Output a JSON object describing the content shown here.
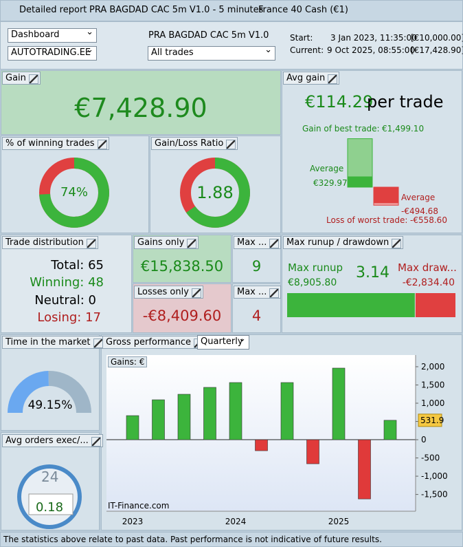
{
  "titlebar": {
    "tabs": [
      "Detailed report",
      "PRA BAGDAD CAC 5m V1.0 - 5 minutes",
      "France 40 Cash (€1)"
    ]
  },
  "toolbar": {
    "view": "Dashboard",
    "broker": "AUTOTRADING.EE",
    "strategy": "PRA BAGDAD CAC 5m V1.0",
    "trades": "All trades",
    "start_label": "Start:",
    "start_date": "3 Jan 2023, 11:35:00",
    "start_capital": "[€10,000.00]",
    "current_label": "Current:",
    "current_date": "9 Oct 2025, 08:55:00",
    "current_capital": "[€17,428.90]"
  },
  "gain": {
    "label": "Gain",
    "value": "€7,428.90"
  },
  "avg_gain": {
    "label": "Avg gain",
    "value": "€114.29",
    "suffix": "per trade",
    "best_prefix": "Gain of best trade:",
    "best": {
      "value": 1499.1,
      "label": "€1,499.10"
    },
    "avg_win_label": "Average",
    "avg_win": {
      "value": 329.97,
      "label": "€329.97"
    },
    "avg_loss_label": "Average",
    "avg_loss": {
      "value": -494.68,
      "label": "-€494.68"
    },
    "worst_prefix": "Loss of worst trade:",
    "worst": {
      "value": -558.6,
      "label": "-€558.60"
    }
  },
  "winning_trades": {
    "label": "% of winning trades",
    "value": 74,
    "value_label": "74%"
  },
  "gain_loss_ratio": {
    "label": "Gain/Loss Ratio",
    "value": 1.88
  },
  "trade_distribution": {
    "label": "Trade distribution",
    "total": "Total: 65",
    "winning": "Winning: 48",
    "neutral": "Neutral: 0",
    "losing": "Losing: 17"
  },
  "gains_only": {
    "label": "Gains only",
    "value": "€15,838.50"
  },
  "max_wins": {
    "label": "Max ...",
    "value": "9"
  },
  "losses_only": {
    "label": "Losses only",
    "value": "-€8,409.60"
  },
  "max_losses": {
    "label": "Max ...",
    "value": "4"
  },
  "runup_drawdown": {
    "label": "Max runup / drawdown",
    "runup_label": "Max runup",
    "runup": {
      "value": 8905.8,
      "label": "€8,905.80"
    },
    "ratio": "3.14",
    "drawdown_label": "Max draw...",
    "drawdown": {
      "value": -2834.4,
      "label": "-€2,834.40"
    }
  },
  "time_in_market": {
    "label": "Time in the market",
    "value": 49.15,
    "value_label": "49.15%"
  },
  "avg_orders": {
    "label": "Avg orders exec/...",
    "clock": "24",
    "value": "0.18"
  },
  "performance": {
    "label": "Gross performance",
    "period": "Quarterly",
    "axis_label": "Gains: €",
    "watermark": "IT-Finance.com"
  },
  "chart_data": {
    "type": "bar",
    "categories": [
      "2023",
      null,
      null,
      null,
      "2024",
      null,
      null,
      null,
      "2025",
      null,
      null
    ],
    "values": [
      660,
      1094,
      1245,
      1434,
      1566,
      -302,
      1566,
      -660,
      1962,
      -1623,
      531.9
    ],
    "positive_color": "#3cb43c",
    "negative_color": "#e03a3a",
    "ylim": [
      -1960,
      2320
    ],
    "yticks": [
      {
        "value": 2000,
        "label": "2,000"
      },
      {
        "value": 1500,
        "label": "1,500"
      },
      {
        "value": 1000,
        "label": "1,000"
      },
      500,
      0,
      -500,
      {
        "value": -1000,
        "label": "-1,000"
      },
      {
        "value": -1500,
        "label": "-1,500"
      }
    ],
    "grid": false
  },
  "footer": "The statistics above relate to past data. Past performance is not indicative of future results."
}
